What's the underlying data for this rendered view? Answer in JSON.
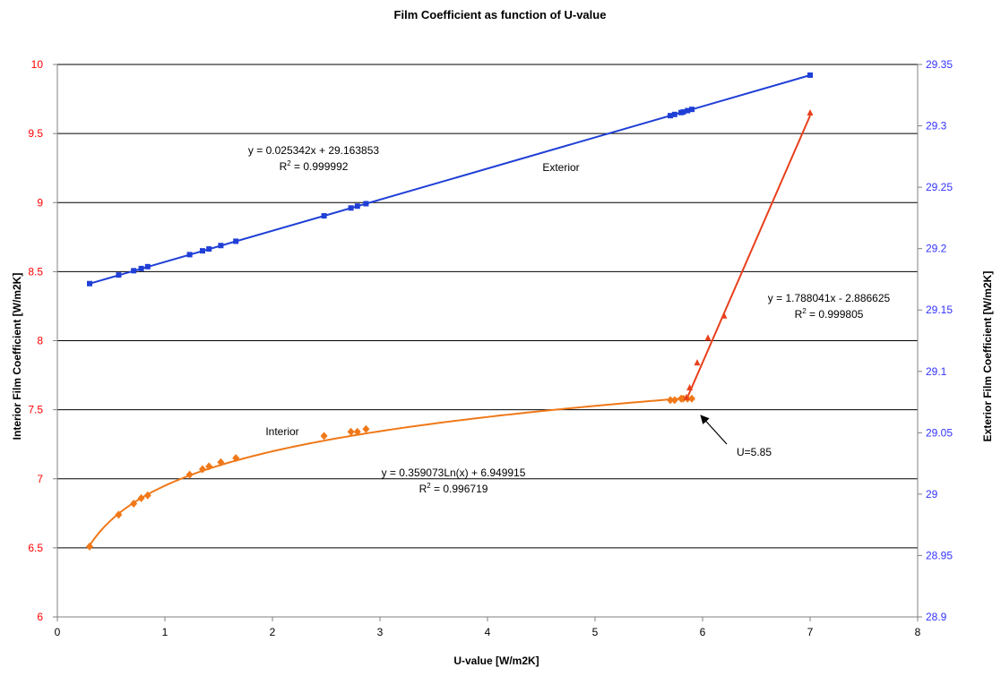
{
  "chart_data": {
    "type": "scatter",
    "title": "Film Coefficient as function of U-value",
    "xlabel": "U-value [W/m2K]",
    "ylabel_left": "Interior Film Coefficient [W/m2K]",
    "ylabel_right": "Exterior Film Coefficient [W/m2K]",
    "xlim": [
      0,
      8
    ],
    "ylim_left": [
      6,
      10
    ],
    "ylim_right": [
      28.9,
      29.35
    ],
    "x_ticks": [
      "0",
      "1",
      "2",
      "3",
      "4",
      "5",
      "6",
      "7",
      "8"
    ],
    "y_left_ticks": [
      "6",
      "6.5",
      "7",
      "7.5",
      "8",
      "8.5",
      "9",
      "9.5",
      "10"
    ],
    "y_right_ticks": [
      "28.9",
      "28.95",
      "29",
      "29.05",
      "29.1",
      "29.15",
      "29.2",
      "29.25",
      "29.3",
      "29.35"
    ],
    "grid": "horizontal",
    "colors": {
      "exterior": "#1f3fd6",
      "interior_log": "#f07818",
      "interior_linear": "#e8401c",
      "left_axis_text": "#ff0000",
      "right_axis_text": "#3333ff",
      "grid": "#000000"
    },
    "series": [
      {
        "name": "Exterior",
        "axis": "right",
        "marker": "square",
        "x": [
          0.3,
          0.57,
          0.71,
          0.78,
          0.84,
          1.23,
          1.35,
          1.41,
          1.52,
          1.66,
          2.48,
          2.73,
          2.79,
          2.87,
          5.7,
          5.74,
          5.8,
          5.82,
          5.86,
          5.9,
          7.0
        ],
        "y": [
          29.1715,
          29.1785,
          29.182,
          29.1838,
          29.1853,
          29.1951,
          29.1982,
          29.1997,
          29.2025,
          29.206,
          29.2267,
          29.2331,
          29.2346,
          29.2366,
          29.3083,
          29.3093,
          29.3108,
          29.3113,
          29.3124,
          29.3134,
          29.3413
        ],
        "trendline": {
          "kind": "linear",
          "slope": 0.025342,
          "intercept": 29.163853,
          "x_range": [
            0.3,
            7.0
          ]
        }
      },
      {
        "name": "Interior",
        "axis": "left",
        "marker": "diamond",
        "x": [
          0.3,
          0.57,
          0.71,
          0.78,
          0.84,
          1.23,
          1.35,
          1.41,
          1.52,
          1.66,
          2.48,
          2.73,
          2.79,
          2.87,
          5.7,
          5.74,
          5.8,
          5.82,
          5.86,
          5.9
        ],
        "y": [
          6.51,
          6.74,
          6.82,
          6.86,
          6.88,
          7.03,
          7.07,
          7.09,
          7.12,
          7.15,
          7.31,
          7.34,
          7.34,
          7.36,
          7.57,
          7.57,
          7.58,
          7.58,
          7.58,
          7.58
        ],
        "trendline": {
          "kind": "log",
          "a": 0.359073,
          "b": 6.949915,
          "x_range": [
            0.3,
            5.85
          ]
        }
      },
      {
        "axis": "left",
        "marker": "triangle",
        "x": [
          5.85,
          5.88,
          5.95,
          6.05,
          6.2,
          7.0
        ],
        "y": [
          7.59,
          7.66,
          7.84,
          8.02,
          8.18,
          9.65
        ],
        "trendline": {
          "kind": "linear",
          "slope": 1.788041,
          "intercept": -2.886625,
          "x_range": [
            5.85,
            7.0
          ]
        }
      }
    ],
    "annotations": {
      "exterior_eq": "y = 0.025342x + 29.163853",
      "exterior_r2_prefix": "R",
      "exterior_r2_value": " = 0.999992",
      "exterior_label": "Exterior",
      "linear_eq": "y = 1.788041x - 2.886625",
      "linear_r2_prefix": "R",
      "linear_r2_value": " = 0.999805",
      "interior_label": "Interior",
      "log_eq": "y = 0.359073Ln(x) + 6.949915",
      "log_r2_prefix": "R",
      "log_r2_value": " = 0.996719",
      "r2_superscript": "2",
      "arrow_label": "U=5.85",
      "arrow_target": {
        "x": 5.85,
        "y": 7.58
      }
    }
  }
}
